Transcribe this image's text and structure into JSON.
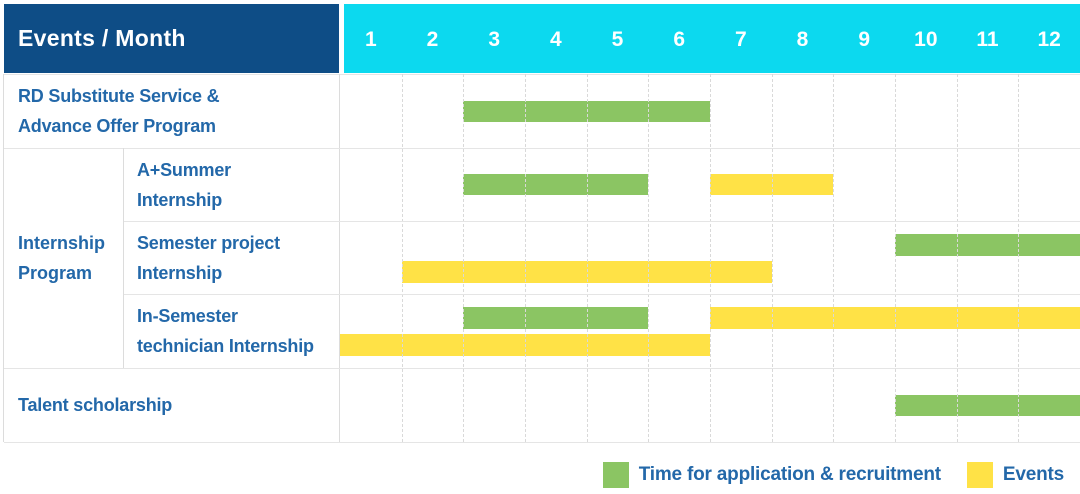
{
  "header": {
    "label": "Events / Month"
  },
  "colors": {
    "header_bg": "#0E4D86",
    "months_bg": "#0CD9EF",
    "header_text": "#FFFFFF",
    "label_text": "#2368A9",
    "recruitment": "#8BC563",
    "event": "#FFE246",
    "grid_line": "#DCDCDC"
  },
  "legend": [
    {
      "label": "Time for application & recruitment",
      "series": "recruitment"
    },
    {
      "label": "Events",
      "series": "event"
    }
  ],
  "chart_data": {
    "type": "table",
    "subtype": "gantt-timeline",
    "title": "Events / Month",
    "x_label": "Month",
    "x_ticks": [
      "1",
      "2",
      "3",
      "4",
      "5",
      "6",
      "7",
      "8",
      "9",
      "10",
      "11",
      "12"
    ],
    "x_range": [
      1,
      12
    ],
    "grid": true,
    "legend_position": "bottom-right",
    "series_names": {
      "recruitment": "Time for application & recruitment",
      "event": "Events"
    },
    "rows": [
      {
        "group": "",
        "label": "RD Substitute Service & Advance Offer Program",
        "label_lines": [
          "RD Substitute Service &",
          "Advance Offer Program"
        ],
        "lanes": [
          [
            {
              "series": "recruitment",
              "start_month": 3,
              "end_month": 6
            }
          ]
        ]
      },
      {
        "group": "Internship Program",
        "label": "A+Summer Internship",
        "label_lines": [
          "A+Summer",
          "Internship"
        ],
        "lanes": [
          [
            {
              "series": "recruitment",
              "start_month": 3,
              "end_month": 5
            },
            {
              "series": "event",
              "start_month": 7,
              "end_month": 8
            }
          ]
        ]
      },
      {
        "group": "Internship Program",
        "label": "Semester project Internship",
        "label_lines": [
          "Semester project",
          "Internship"
        ],
        "lanes": [
          [
            {
              "series": "recruitment",
              "start_month": 10,
              "end_month": 12
            }
          ],
          [
            {
              "series": "event",
              "start_month": 2,
              "end_month": 7
            }
          ]
        ]
      },
      {
        "group": "Internship Program",
        "label": "In-Semester technician Internship",
        "label_lines": [
          "In-Semester",
          "technician Internship"
        ],
        "lanes": [
          [
            {
              "series": "recruitment",
              "start_month": 3,
              "end_month": 5
            },
            {
              "series": "event",
              "start_month": 7,
              "end_month": 12
            }
          ],
          [
            {
              "series": "event",
              "start_month": 1,
              "end_month": 6
            }
          ]
        ]
      },
      {
        "group": "",
        "label": "Talent scholarship",
        "label_lines": [
          "Talent scholarship"
        ],
        "lanes": [
          [
            {
              "series": "recruitment",
              "start_month": 10,
              "end_month": 12
            }
          ]
        ]
      }
    ]
  }
}
